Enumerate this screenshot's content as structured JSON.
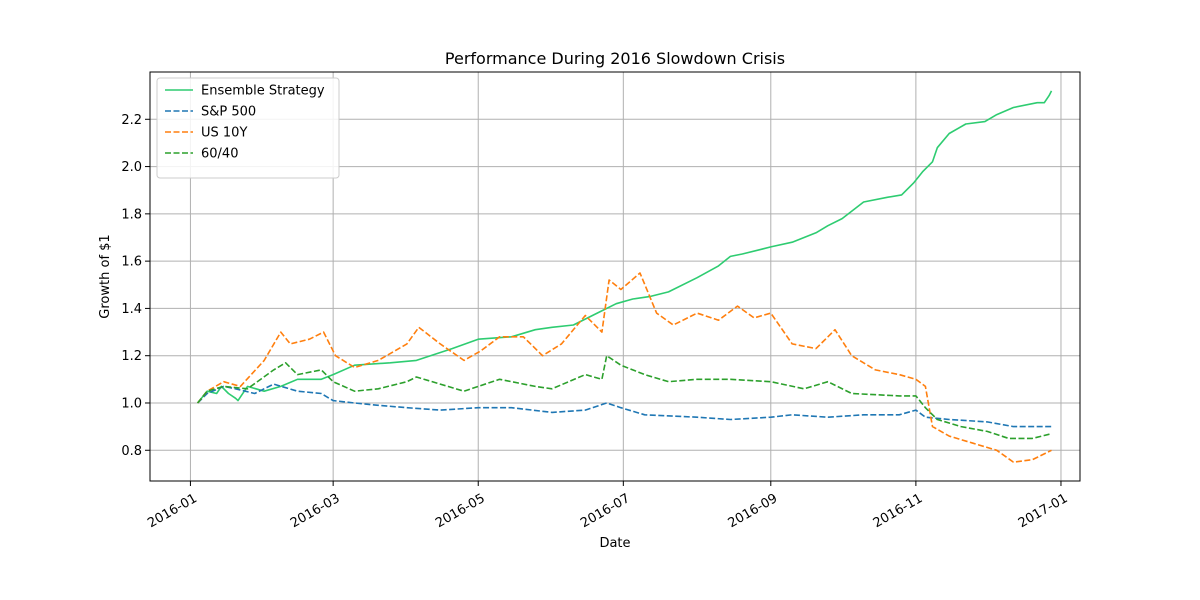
{
  "chart_data": {
    "type": "line",
    "title": "Performance During 2016 Slowdown Crisis",
    "xlabel": "Date",
    "ylabel": "Growth of $1",
    "xlim": [
      "2015-12-15",
      "2017-01-09"
    ],
    "ylim": [
      0.67,
      2.4
    ],
    "x_ticks": [
      "2016-01-01",
      "2016-03-01",
      "2016-05-01",
      "2016-07-01",
      "2016-09-01",
      "2016-11-01",
      "2017-01-01"
    ],
    "x_tick_labels": [
      "2016-01",
      "2016-03",
      "2016-05",
      "2016-07",
      "2016-09",
      "2016-11",
      "2017-01"
    ],
    "y_ticks": [
      0.8,
      1.0,
      1.2,
      1.4,
      1.6,
      1.8,
      2.0,
      2.2
    ],
    "y_tick_labels": [
      "0.8",
      "1.0",
      "1.2",
      "1.4",
      "1.6",
      "1.8",
      "2.0",
      "2.2"
    ],
    "grid": true,
    "legend_position": "top-left",
    "series": [
      {
        "name": "Ensemble Strategy",
        "color": "#2ecc71",
        "style": "solid",
        "points": [
          [
            "2016-01-04",
            1.0
          ],
          [
            "2016-01-08",
            1.05
          ],
          [
            "2016-01-12",
            1.04
          ],
          [
            "2016-01-14",
            1.07
          ],
          [
            "2016-01-17",
            1.04
          ],
          [
            "2016-01-20",
            1.02
          ],
          [
            "2016-01-21",
            1.01
          ],
          [
            "2016-01-25",
            1.07
          ],
          [
            "2016-02-01",
            1.05
          ],
          [
            "2016-02-08",
            1.07
          ],
          [
            "2016-02-15",
            1.1
          ],
          [
            "2016-02-25",
            1.1
          ],
          [
            "2016-03-01",
            1.12
          ],
          [
            "2016-03-10",
            1.16
          ],
          [
            "2016-03-25",
            1.17
          ],
          [
            "2016-04-05",
            1.18
          ],
          [
            "2016-04-20",
            1.23
          ],
          [
            "2016-05-01",
            1.27
          ],
          [
            "2016-05-15",
            1.28
          ],
          [
            "2016-05-25",
            1.31
          ],
          [
            "2016-06-01",
            1.32
          ],
          [
            "2016-06-10",
            1.33
          ],
          [
            "2016-06-20",
            1.38
          ],
          [
            "2016-06-28",
            1.42
          ],
          [
            "2016-07-05",
            1.44
          ],
          [
            "2016-07-12",
            1.45
          ],
          [
            "2016-07-20",
            1.47
          ],
          [
            "2016-08-01",
            1.53
          ],
          [
            "2016-08-10",
            1.58
          ],
          [
            "2016-08-15",
            1.62
          ],
          [
            "2016-08-20",
            1.63
          ],
          [
            "2016-08-28",
            1.65
          ],
          [
            "2016-09-01",
            1.66
          ],
          [
            "2016-09-10",
            1.68
          ],
          [
            "2016-09-20",
            1.72
          ],
          [
            "2016-09-25",
            1.75
          ],
          [
            "2016-10-01",
            1.78
          ],
          [
            "2016-10-10",
            1.85
          ],
          [
            "2016-10-20",
            1.87
          ],
          [
            "2016-10-26",
            1.88
          ],
          [
            "2016-10-31",
            1.93
          ],
          [
            "2016-11-04",
            1.98
          ],
          [
            "2016-11-08",
            2.02
          ],
          [
            "2016-11-10",
            2.08
          ],
          [
            "2016-11-15",
            2.14
          ],
          [
            "2016-11-22",
            2.18
          ],
          [
            "2016-11-30",
            2.19
          ],
          [
            "2016-12-05",
            2.22
          ],
          [
            "2016-12-12",
            2.25
          ],
          [
            "2016-12-22",
            2.27
          ],
          [
            "2016-12-25",
            2.27
          ],
          [
            "2016-12-27",
            2.3
          ],
          [
            "2016-12-28",
            2.32
          ]
        ]
      },
      {
        "name": "S&P 500",
        "color": "#1f77b4",
        "style": "dashed",
        "points": [
          [
            "2016-01-04",
            1.0
          ],
          [
            "2016-01-08",
            1.04
          ],
          [
            "2016-01-15",
            1.07
          ],
          [
            "2016-01-20",
            1.06
          ],
          [
            "2016-01-28",
            1.04
          ],
          [
            "2016-02-05",
            1.08
          ],
          [
            "2016-02-15",
            1.05
          ],
          [
            "2016-02-25",
            1.04
          ],
          [
            "2016-03-01",
            1.01
          ],
          [
            "2016-03-10",
            1.0
          ],
          [
            "2016-03-20",
            0.99
          ],
          [
            "2016-04-01",
            0.98
          ],
          [
            "2016-04-15",
            0.97
          ],
          [
            "2016-05-01",
            0.98
          ],
          [
            "2016-05-15",
            0.98
          ],
          [
            "2016-06-01",
            0.96
          ],
          [
            "2016-06-15",
            0.97
          ],
          [
            "2016-06-24",
            1.0
          ],
          [
            "2016-06-30",
            0.98
          ],
          [
            "2016-07-10",
            0.95
          ],
          [
            "2016-08-01",
            0.94
          ],
          [
            "2016-08-15",
            0.93
          ],
          [
            "2016-09-01",
            0.94
          ],
          [
            "2016-09-10",
            0.95
          ],
          [
            "2016-09-25",
            0.94
          ],
          [
            "2016-10-10",
            0.95
          ],
          [
            "2016-10-25",
            0.95
          ],
          [
            "2016-11-01",
            0.97
          ],
          [
            "2016-11-05",
            0.94
          ],
          [
            "2016-11-15",
            0.93
          ],
          [
            "2016-12-01",
            0.92
          ],
          [
            "2016-12-12",
            0.9
          ],
          [
            "2016-12-28",
            0.9
          ]
        ]
      },
      {
        "name": "US 10Y",
        "color": "#ff7f0e",
        "style": "dashed",
        "points": [
          [
            "2016-01-04",
            1.0
          ],
          [
            "2016-01-08",
            1.05
          ],
          [
            "2016-01-15",
            1.09
          ],
          [
            "2016-01-22",
            1.07
          ],
          [
            "2016-02-01",
            1.18
          ],
          [
            "2016-02-08",
            1.3
          ],
          [
            "2016-02-12",
            1.25
          ],
          [
            "2016-02-20",
            1.27
          ],
          [
            "2016-02-26",
            1.3
          ],
          [
            "2016-03-02",
            1.2
          ],
          [
            "2016-03-10",
            1.15
          ],
          [
            "2016-03-20",
            1.18
          ],
          [
            "2016-04-01",
            1.25
          ],
          [
            "2016-04-06",
            1.32
          ],
          [
            "2016-04-15",
            1.25
          ],
          [
            "2016-04-25",
            1.18
          ],
          [
            "2016-05-02",
            1.22
          ],
          [
            "2016-05-10",
            1.28
          ],
          [
            "2016-05-20",
            1.28
          ],
          [
            "2016-05-28",
            1.2
          ],
          [
            "2016-06-05",
            1.25
          ],
          [
            "2016-06-15",
            1.37
          ],
          [
            "2016-06-22",
            1.3
          ],
          [
            "2016-06-25",
            1.52
          ],
          [
            "2016-06-30",
            1.48
          ],
          [
            "2016-07-08",
            1.55
          ],
          [
            "2016-07-15",
            1.38
          ],
          [
            "2016-07-22",
            1.33
          ],
          [
            "2016-08-01",
            1.38
          ],
          [
            "2016-08-10",
            1.35
          ],
          [
            "2016-08-18",
            1.41
          ],
          [
            "2016-08-25",
            1.36
          ],
          [
            "2016-09-01",
            1.38
          ],
          [
            "2016-09-10",
            1.25
          ],
          [
            "2016-09-20",
            1.23
          ],
          [
            "2016-09-28",
            1.31
          ],
          [
            "2016-10-05",
            1.2
          ],
          [
            "2016-10-15",
            1.14
          ],
          [
            "2016-10-25",
            1.12
          ],
          [
            "2016-11-01",
            1.1
          ],
          [
            "2016-11-05",
            1.07
          ],
          [
            "2016-11-08",
            0.9
          ],
          [
            "2016-11-15",
            0.86
          ],
          [
            "2016-11-25",
            0.83
          ],
          [
            "2016-12-05",
            0.8
          ],
          [
            "2016-12-12",
            0.75
          ],
          [
            "2016-12-20",
            0.76
          ],
          [
            "2016-12-28",
            0.8
          ]
        ]
      },
      {
        "name": "60/40",
        "color": "#2ca02c",
        "style": "dashed",
        "points": [
          [
            "2016-01-04",
            1.0
          ],
          [
            "2016-01-08",
            1.05
          ],
          [
            "2016-01-15",
            1.07
          ],
          [
            "2016-01-25",
            1.06
          ],
          [
            "2016-02-05",
            1.14
          ],
          [
            "2016-02-10",
            1.17
          ],
          [
            "2016-02-15",
            1.12
          ],
          [
            "2016-02-25",
            1.14
          ],
          [
            "2016-03-01",
            1.09
          ],
          [
            "2016-03-10",
            1.05
          ],
          [
            "2016-03-20",
            1.06
          ],
          [
            "2016-04-01",
            1.09
          ],
          [
            "2016-04-05",
            1.11
          ],
          [
            "2016-04-15",
            1.08
          ],
          [
            "2016-04-25",
            1.05
          ],
          [
            "2016-05-01",
            1.07
          ],
          [
            "2016-05-10",
            1.1
          ],
          [
            "2016-05-25",
            1.07
          ],
          [
            "2016-06-01",
            1.06
          ],
          [
            "2016-06-15",
            1.12
          ],
          [
            "2016-06-22",
            1.1
          ],
          [
            "2016-06-24",
            1.2
          ],
          [
            "2016-06-30",
            1.16
          ],
          [
            "2016-07-10",
            1.12
          ],
          [
            "2016-07-20",
            1.09
          ],
          [
            "2016-08-01",
            1.1
          ],
          [
            "2016-08-15",
            1.1
          ],
          [
            "2016-09-01",
            1.09
          ],
          [
            "2016-09-15",
            1.06
          ],
          [
            "2016-09-25",
            1.09
          ],
          [
            "2016-10-05",
            1.04
          ],
          [
            "2016-10-25",
            1.03
          ],
          [
            "2016-11-01",
            1.03
          ],
          [
            "2016-11-05",
            0.98
          ],
          [
            "2016-11-10",
            0.93
          ],
          [
            "2016-11-20",
            0.9
          ],
          [
            "2016-12-01",
            0.88
          ],
          [
            "2016-12-10",
            0.85
          ],
          [
            "2016-12-20",
            0.85
          ],
          [
            "2016-12-28",
            0.87
          ]
        ]
      }
    ]
  }
}
